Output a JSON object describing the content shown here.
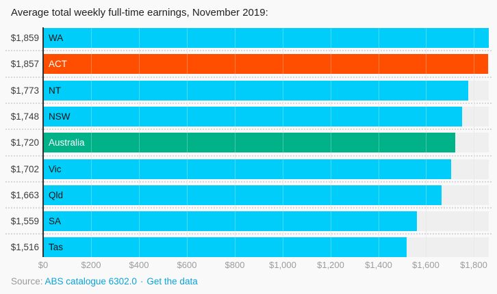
{
  "chart_data": {
    "type": "bar",
    "orientation": "horizontal",
    "title": "Average total weekly full-time earnings, November 2019:",
    "categories": [
      "WA",
      "ACT",
      "NT",
      "NSW",
      "Australia",
      "Vic",
      "Qld",
      "SA",
      "Tas"
    ],
    "values": [
      1859,
      1857,
      1773,
      1748,
      1720,
      1702,
      1663,
      1559,
      1516
    ],
    "value_labels": [
      "$1,859",
      "$1,857",
      "$1,773",
      "$1,748",
      "$1,720",
      "$1,702",
      "$1,663",
      "$1,559",
      "$1,516"
    ],
    "bar_colors": [
      "cyan",
      "orange",
      "cyan",
      "cyan",
      "green",
      "cyan",
      "cyan",
      "cyan",
      "cyan"
    ],
    "bar_label_colors": [
      "dark",
      "white",
      "dark",
      "dark",
      "white",
      "dark",
      "dark",
      "dark",
      "dark"
    ],
    "x_tick_labels": [
      "$0",
      "$200",
      "$400",
      "$600",
      "$800",
      "$1,000",
      "$1,200",
      "$1,400",
      "$1,600",
      "$1,800"
    ],
    "x_tick_values": [
      0,
      200,
      400,
      600,
      800,
      1000,
      1200,
      1400,
      1600,
      1800
    ],
    "x_axis_max": 1859,
    "grid": true,
    "legend": "none",
    "palette": {
      "cyan": "#00cdfa",
      "orange": "#ff4e00",
      "green": "#00b287",
      "track": "#efefef",
      "gridline": "#e2e2e2",
      "dark": "#141414",
      "white": "#ffffff"
    }
  },
  "source": {
    "prefix": "Source:",
    "link_catalogue": "ABS catalogue 6302.0",
    "separator": "·",
    "link_get_data": "Get the data",
    "link_color": "#0ba3d9"
  }
}
